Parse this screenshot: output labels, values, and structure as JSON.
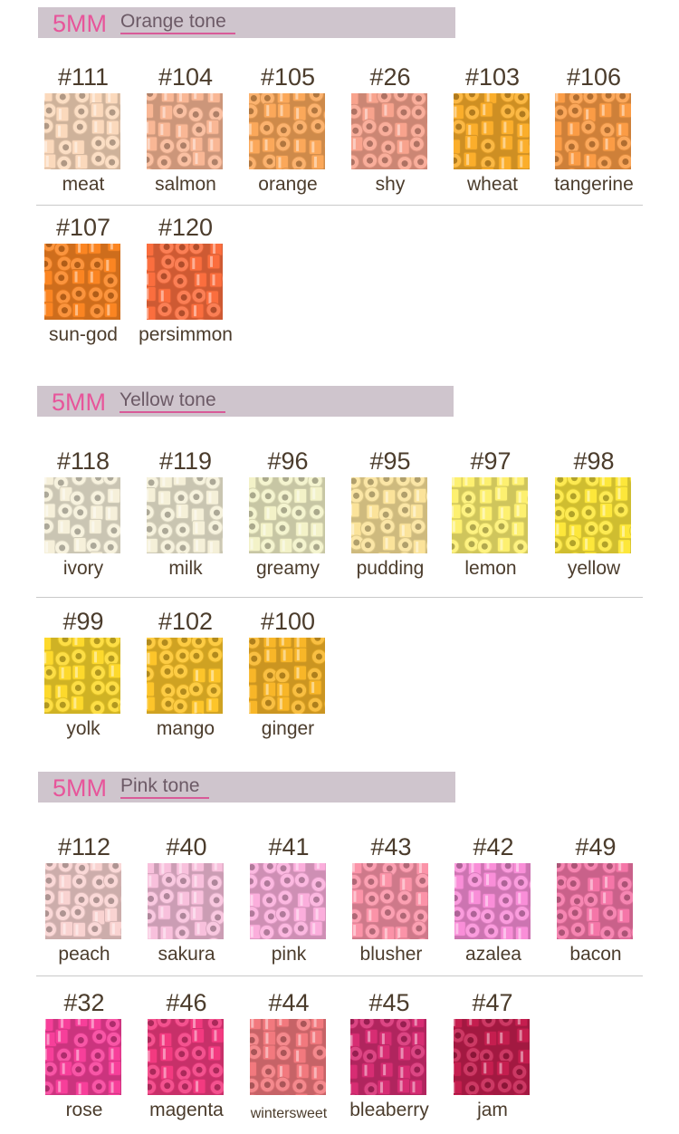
{
  "sections": [
    {
      "mm": "5MM",
      "tone": "Orange tone",
      "rows": [
        [
          {
            "code": "#111",
            "label": "meat",
            "color": "#fbd9bc"
          },
          {
            "code": "#104",
            "label": "salmon",
            "color": "#f9b795"
          },
          {
            "code": "#105",
            "label": "orange",
            "color": "#fba85a"
          },
          {
            "code": "#26",
            "label": "shy",
            "color": "#f8a38d"
          },
          {
            "code": "#103",
            "label": "wheat",
            "color": "#fbae2b"
          },
          {
            "code": "#106",
            "label": "tangerine",
            "color": "#fb9c45"
          }
        ],
        [
          {
            "code": "#107",
            "label": "sun-god",
            "color": "#fb8522"
          },
          {
            "code": "#120",
            "label": "persimmon",
            "color": "#fb6e3e"
          }
        ]
      ]
    },
    {
      "mm": "5MM",
      "tone": "Yellow tone",
      "rows": [
        [
          {
            "code": "#118",
            "label": "ivory",
            "color": "#f6f0da"
          },
          {
            "code": "#119",
            "label": "milk",
            "color": "#f5f0d8"
          },
          {
            "code": "#96",
            "label": "greamy",
            "color": "#f3f2c8"
          },
          {
            "code": "#95",
            "label": "pudding",
            "color": "#fbe39a"
          },
          {
            "code": "#97",
            "label": "lemon",
            "color": "#fdf070"
          },
          {
            "code": "#98",
            "label": "yellow",
            "color": "#fde73a"
          }
        ],
        [
          {
            "code": "#99",
            "label": "yolk",
            "color": "#fdd92c"
          },
          {
            "code": "#102",
            "label": "mango",
            "color": "#fdc52a"
          },
          {
            "code": "#100",
            "label": "ginger",
            "color": "#f8b628"
          }
        ]
      ]
    },
    {
      "mm": "5MM",
      "tone": "Pink tone",
      "rows": [
        [
          {
            "code": "#112",
            "label": "peach",
            "color": "#f9d3d1"
          },
          {
            "code": "#40",
            "label": "sakura",
            "color": "#f8c0dc"
          },
          {
            "code": "#41",
            "label": "pink",
            "color": "#fbaedc"
          },
          {
            "code": "#43",
            "label": "blusher",
            "color": "#fb93a8"
          },
          {
            "code": "#42",
            "label": "azalea",
            "color": "#f98ed8"
          },
          {
            "code": "#49",
            "label": "bacon",
            "color": "#f576a8"
          }
        ],
        [
          {
            "code": "#32",
            "label": "rose",
            "color": "#f73f9a"
          },
          {
            "code": "#46",
            "label": "magenta",
            "color": "#f33a80"
          },
          {
            "code": "#44",
            "label": "wintersweet",
            "color": "#f2797e"
          },
          {
            "code": "#45",
            "label": "bleaberry",
            "color": "#d72d73"
          },
          {
            "code": "#47",
            "label": "jam",
            "color": "#c51e4f"
          }
        ]
      ]
    }
  ]
}
